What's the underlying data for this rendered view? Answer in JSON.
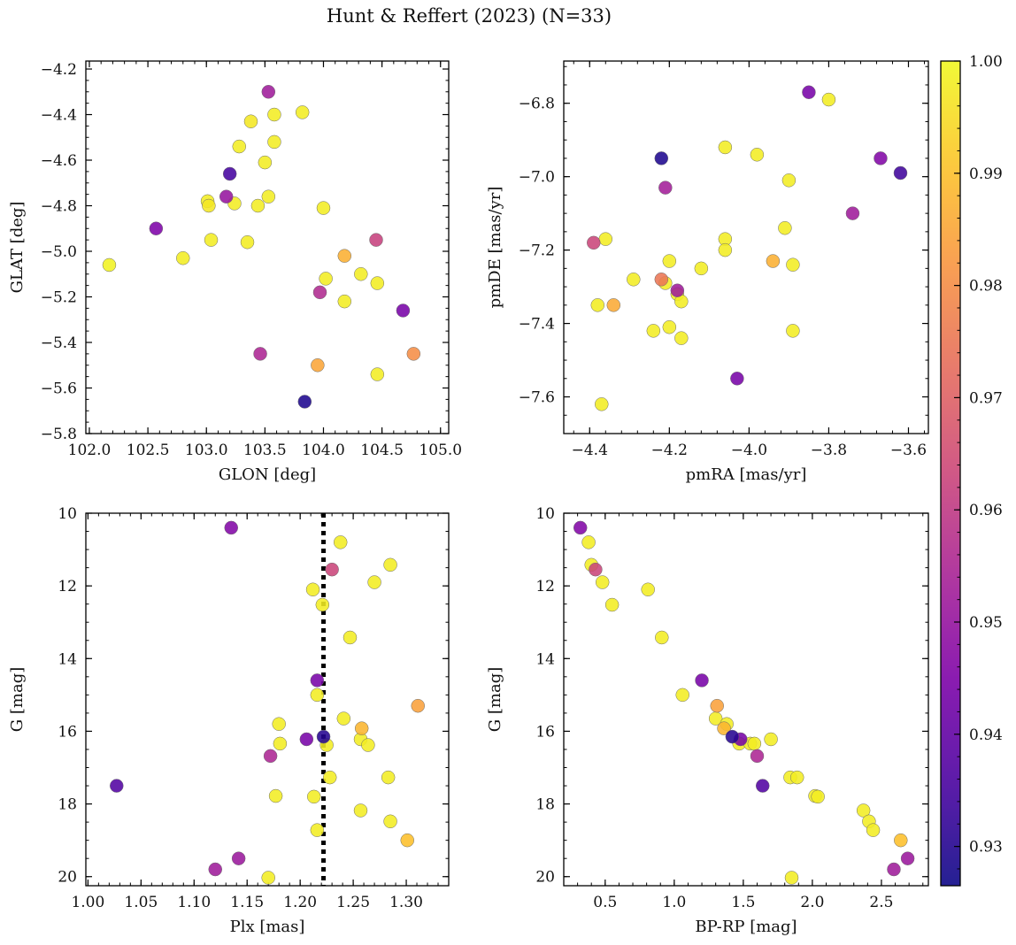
{
  "figure": {
    "title": "Hunt & Reffert (2023) (N=33)"
  },
  "colorbar": {
    "colormap": "plasma",
    "vmin": 0.9265,
    "vmax": 1.0,
    "ticks": [
      0.93,
      0.94,
      0.95,
      0.96,
      0.97,
      0.98,
      0.99,
      1.0
    ],
    "tick_labels": [
      "0.93",
      "0.94",
      "0.95",
      "0.96",
      "0.97",
      "0.98",
      "0.99",
      "1.00"
    ]
  },
  "chart_data": [
    {
      "type": "scatter",
      "xlabel": "GLON [deg]",
      "ylabel": "GLAT [deg]",
      "xlim": [
        101.97,
        105.07
      ],
      "ylim": [
        -5.8,
        -4.165
      ],
      "y_inverted": false,
      "xticks": [
        102.0,
        102.5,
        103.0,
        103.5,
        104.0,
        104.5,
        105.0
      ],
      "xtick_labels": [
        "102.0",
        "102.5",
        "103.0",
        "103.5",
        "104.0",
        "104.5",
        "105.0"
      ],
      "yticks": [
        -5.8,
        -5.6,
        -5.4,
        -5.2,
        -5.0,
        -4.8,
        -4.6,
        -4.4,
        -4.2
      ],
      "ytick_labels": [
        "−5.8",
        "−5.6",
        "−5.4",
        "−5.2",
        "−5.0",
        "−4.8",
        "−4.6",
        "−4.4",
        "−4.2"
      ],
      "points": [
        {
          "x": 103.53,
          "y": -4.3,
          "c": 0.952
        },
        {
          "x": 103.82,
          "y": -4.39,
          "c": 0.998
        },
        {
          "x": 103.58,
          "y": -4.4,
          "c": 0.998
        },
        {
          "x": 103.38,
          "y": -4.43,
          "c": 0.997
        },
        {
          "x": 103.58,
          "y": -4.52,
          "c": 0.998
        },
        {
          "x": 103.28,
          "y": -4.54,
          "c": 0.998
        },
        {
          "x": 103.5,
          "y": -4.61,
          "c": 0.998
        },
        {
          "x": 103.2,
          "y": -4.66,
          "c": 0.935
        },
        {
          "x": 103.17,
          "y": -4.76,
          "c": 0.95
        },
        {
          "x": 103.53,
          "y": -4.76,
          "c": 0.998
        },
        {
          "x": 103.01,
          "y": -4.78,
          "c": 0.998
        },
        {
          "x": 103.02,
          "y": -4.8,
          "c": 0.997
        },
        {
          "x": 103.24,
          "y": -4.79,
          "c": 0.998
        },
        {
          "x": 103.44,
          "y": -4.8,
          "c": 0.998
        },
        {
          "x": 104.0,
          "y": -4.81,
          "c": 0.998
        },
        {
          "x": 102.57,
          "y": -4.9,
          "c": 0.945
        },
        {
          "x": 103.04,
          "y": -4.95,
          "c": 0.998
        },
        {
          "x": 103.35,
          "y": -4.96,
          "c": 0.998
        },
        {
          "x": 104.45,
          "y": -4.95,
          "c": 0.962
        },
        {
          "x": 104.18,
          "y": -5.02,
          "c": 0.987
        },
        {
          "x": 102.8,
          "y": -5.03,
          "c": 0.998
        },
        {
          "x": 102.17,
          "y": -5.06,
          "c": 0.999
        },
        {
          "x": 104.32,
          "y": -5.1,
          "c": 0.998
        },
        {
          "x": 104.02,
          "y": -5.12,
          "c": 0.998
        },
        {
          "x": 104.46,
          "y": -5.14,
          "c": 0.998
        },
        {
          "x": 103.97,
          "y": -5.18,
          "c": 0.956
        },
        {
          "x": 104.18,
          "y": -5.22,
          "c": 0.998
        },
        {
          "x": 104.68,
          "y": -5.26,
          "c": 0.944
        },
        {
          "x": 103.46,
          "y": -5.45,
          "c": 0.955
        },
        {
          "x": 104.77,
          "y": -5.45,
          "c": 0.98
        },
        {
          "x": 103.95,
          "y": -5.5,
          "c": 0.985
        },
        {
          "x": 104.46,
          "y": -5.54,
          "c": 0.998
        },
        {
          "x": 103.84,
          "y": -5.66,
          "c": 0.929
        }
      ]
    },
    {
      "type": "scatter",
      "xlabel": "pmRA [mas/yr]",
      "ylabel": "pmDE [mas/yr]",
      "xlim": [
        -4.465,
        -3.55
      ],
      "ylim": [
        -7.7,
        -6.685
      ],
      "y_inverted": false,
      "xticks": [
        -4.4,
        -4.2,
        -4.0,
        -3.8,
        -3.6
      ],
      "xtick_labels": [
        "−4.4",
        "−4.2",
        "−4.0",
        "−3.8",
        "−3.6"
      ],
      "yticks": [
        -7.6,
        -7.4,
        -7.2,
        -7.0,
        -6.8
      ],
      "ytick_labels": [
        "−7.6",
        "−7.4",
        "−7.2",
        "−7.0",
        "−6.8"
      ],
      "points": [
        {
          "x": -3.85,
          "y": -6.77,
          "c": 0.944
        },
        {
          "x": -3.8,
          "y": -6.79,
          "c": 0.998
        },
        {
          "x": -4.22,
          "y": -6.95,
          "c": 0.929
        },
        {
          "x": -4.06,
          "y": -6.92,
          "c": 0.998
        },
        {
          "x": -3.98,
          "y": -6.94,
          "c": 0.998
        },
        {
          "x": -3.67,
          "y": -6.95,
          "c": 0.946
        },
        {
          "x": -3.62,
          "y": -6.99,
          "c": 0.934
        },
        {
          "x": -3.9,
          "y": -7.01,
          "c": 0.998
        },
        {
          "x": -4.21,
          "y": -7.03,
          "c": 0.953
        },
        {
          "x": -3.74,
          "y": -7.1,
          "c": 0.952
        },
        {
          "x": -3.91,
          "y": -7.14,
          "c": 0.998
        },
        {
          "x": -4.39,
          "y": -7.18,
          "c": 0.963
        },
        {
          "x": -4.36,
          "y": -7.17,
          "c": 0.998
        },
        {
          "x": -4.06,
          "y": -7.17,
          "c": 0.998
        },
        {
          "x": -4.06,
          "y": -7.2,
          "c": 0.998
        },
        {
          "x": -4.2,
          "y": -7.23,
          "c": 0.998
        },
        {
          "x": -3.94,
          "y": -7.23,
          "c": 0.987
        },
        {
          "x": -4.12,
          "y": -7.25,
          "c": 0.998
        },
        {
          "x": -3.89,
          "y": -7.24,
          "c": 0.998
        },
        {
          "x": -4.29,
          "y": -7.28,
          "c": 0.998
        },
        {
          "x": -4.22,
          "y": -7.28,
          "c": 0.975
        },
        {
          "x": -4.21,
          "y": -7.29,
          "c": 0.998
        },
        {
          "x": -4.18,
          "y": -7.31,
          "c": 0.952
        },
        {
          "x": -4.18,
          "y": -7.32,
          "c": 0.998
        },
        {
          "x": -4.17,
          "y": -7.34,
          "c": 0.998
        },
        {
          "x": -4.38,
          "y": -7.35,
          "c": 0.998
        },
        {
          "x": -4.34,
          "y": -7.35,
          "c": 0.986
        },
        {
          "x": -4.24,
          "y": -7.42,
          "c": 0.998
        },
        {
          "x": -4.2,
          "y": -7.41,
          "c": 0.998
        },
        {
          "x": -4.17,
          "y": -7.44,
          "c": 0.998
        },
        {
          "x": -3.89,
          "y": -7.42,
          "c": 0.998
        },
        {
          "x": -4.03,
          "y": -7.55,
          "c": 0.944
        },
        {
          "x": -4.37,
          "y": -7.62,
          "c": 0.998
        }
      ]
    },
    {
      "type": "scatter",
      "xlabel": "Plx [mas]",
      "ylabel": "G [mag]",
      "xlim": [
        0.998,
        1.34
      ],
      "ylim": [
        10.0,
        20.25
      ],
      "y_inverted": true,
      "vline": {
        "x": 1.222,
        "style": "dotted"
      },
      "xticks": [
        1.0,
        1.05,
        1.1,
        1.15,
        1.2,
        1.25,
        1.3
      ],
      "xtick_labels": [
        "1.00",
        "1.05",
        "1.10",
        "1.15",
        "1.20",
        "1.25",
        "1.30"
      ],
      "yticks": [
        10,
        12,
        14,
        16,
        18,
        20
      ],
      "ytick_labels": [
        "10",
        "12",
        "14",
        "16",
        "18",
        "20"
      ],
      "points": [
        {
          "x": 1.135,
          "y": 10.4,
          "c": 0.946
        },
        {
          "x": 1.238,
          "y": 10.8,
          "c": 0.998
        },
        {
          "x": 1.285,
          "y": 11.42,
          "c": 0.998
        },
        {
          "x": 1.23,
          "y": 11.55,
          "c": 0.963
        },
        {
          "x": 1.27,
          "y": 11.9,
          "c": 0.998
        },
        {
          "x": 1.212,
          "y": 12.1,
          "c": 0.998
        },
        {
          "x": 1.221,
          "y": 12.52,
          "c": 0.998
        },
        {
          "x": 1.247,
          "y": 13.42,
          "c": 0.998
        },
        {
          "x": 1.216,
          "y": 14.6,
          "c": 0.944
        },
        {
          "x": 1.216,
          "y": 15.0,
          "c": 0.998
        },
        {
          "x": 1.311,
          "y": 15.3,
          "c": 0.984
        },
        {
          "x": 1.241,
          "y": 15.65,
          "c": 0.998
        },
        {
          "x": 1.18,
          "y": 15.8,
          "c": 0.998
        },
        {
          "x": 1.258,
          "y": 15.92,
          "c": 0.988
        },
        {
          "x": 1.222,
          "y": 16.15,
          "c": 0.93
        },
        {
          "x": 1.206,
          "y": 16.22,
          "c": 0.944
        },
        {
          "x": 1.257,
          "y": 16.22,
          "c": 0.998
        },
        {
          "x": 1.181,
          "y": 16.34,
          "c": 0.998
        },
        {
          "x": 1.225,
          "y": 16.38,
          "c": 0.998
        },
        {
          "x": 1.264,
          "y": 16.38,
          "c": 0.998
        },
        {
          "x": 1.172,
          "y": 16.68,
          "c": 0.955
        },
        {
          "x": 1.228,
          "y": 17.27,
          "c": 0.998
        },
        {
          "x": 1.283,
          "y": 17.27,
          "c": 0.998
        },
        {
          "x": 1.027,
          "y": 17.5,
          "c": 0.937
        },
        {
          "x": 1.177,
          "y": 17.78,
          "c": 0.998
        },
        {
          "x": 1.213,
          "y": 17.8,
          "c": 0.998
        },
        {
          "x": 1.257,
          "y": 18.18,
          "c": 0.998
        },
        {
          "x": 1.285,
          "y": 18.48,
          "c": 0.998
        },
        {
          "x": 1.216,
          "y": 18.72,
          "c": 0.998
        },
        {
          "x": 1.301,
          "y": 19.0,
          "c": 0.99
        },
        {
          "x": 1.142,
          "y": 19.5,
          "c": 0.951
        },
        {
          "x": 1.12,
          "y": 19.8,
          "c": 0.952
        },
        {
          "x": 1.17,
          "y": 20.03,
          "c": 0.998
        }
      ]
    },
    {
      "type": "scatter",
      "xlabel": "BP-RP [mag]",
      "ylabel": "G [mag]",
      "xlim": [
        0.2,
        2.84
      ],
      "ylim": [
        10.0,
        20.25
      ],
      "y_inverted": true,
      "xticks": [
        0.5,
        1.0,
        1.5,
        2.0,
        2.5
      ],
      "xtick_labels": [
        "0.5",
        "1.0",
        "1.5",
        "2.0",
        "2.5"
      ],
      "yticks": [
        10,
        12,
        14,
        16,
        18,
        20
      ],
      "ytick_labels": [
        "10",
        "12",
        "14",
        "16",
        "18",
        "20"
      ],
      "points": [
        {
          "x": 0.32,
          "y": 10.4,
          "c": 0.946
        },
        {
          "x": 0.38,
          "y": 10.8,
          "c": 0.998
        },
        {
          "x": 0.4,
          "y": 11.42,
          "c": 0.998
        },
        {
          "x": 0.43,
          "y": 11.55,
          "c": 0.963
        },
        {
          "x": 0.48,
          "y": 11.9,
          "c": 0.998
        },
        {
          "x": 0.55,
          "y": 12.52,
          "c": 0.998
        },
        {
          "x": 0.81,
          "y": 12.1,
          "c": 0.998
        },
        {
          "x": 0.91,
          "y": 13.42,
          "c": 0.998
        },
        {
          "x": 1.2,
          "y": 14.6,
          "c": 0.944
        },
        {
          "x": 1.06,
          "y": 15.0,
          "c": 0.998
        },
        {
          "x": 1.31,
          "y": 15.3,
          "c": 0.984
        },
        {
          "x": 1.3,
          "y": 15.65,
          "c": 0.998
        },
        {
          "x": 1.38,
          "y": 15.8,
          "c": 0.998
        },
        {
          "x": 1.36,
          "y": 15.92,
          "c": 0.988
        },
        {
          "x": 1.42,
          "y": 16.15,
          "c": 0.93
        },
        {
          "x": 1.48,
          "y": 16.22,
          "c": 0.944
        },
        {
          "x": 1.7,
          "y": 16.22,
          "c": 0.998
        },
        {
          "x": 1.47,
          "y": 16.34,
          "c": 0.998
        },
        {
          "x": 1.55,
          "y": 16.34,
          "c": 0.998
        },
        {
          "x": 1.58,
          "y": 16.34,
          "c": 0.998
        },
        {
          "x": 1.6,
          "y": 16.68,
          "c": 0.955
        },
        {
          "x": 1.64,
          "y": 17.5,
          "c": 0.937
        },
        {
          "x": 1.84,
          "y": 17.27,
          "c": 0.998
        },
        {
          "x": 1.89,
          "y": 17.27,
          "c": 0.998
        },
        {
          "x": 2.02,
          "y": 17.78,
          "c": 0.998
        },
        {
          "x": 2.04,
          "y": 17.8,
          "c": 0.998
        },
        {
          "x": 2.37,
          "y": 18.18,
          "c": 0.998
        },
        {
          "x": 2.41,
          "y": 18.48,
          "c": 0.998
        },
        {
          "x": 2.44,
          "y": 18.72,
          "c": 0.998
        },
        {
          "x": 2.64,
          "y": 19.0,
          "c": 0.99
        },
        {
          "x": 2.69,
          "y": 19.5,
          "c": 0.951
        },
        {
          "x": 2.59,
          "y": 19.8,
          "c": 0.952
        },
        {
          "x": 1.85,
          "y": 20.03,
          "c": 0.998
        }
      ]
    }
  ]
}
